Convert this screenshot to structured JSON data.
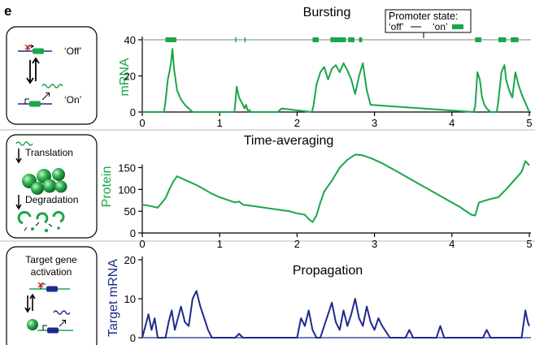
{
  "panel_letter": "e",
  "colors": {
    "green": "#1aa64a",
    "navy": "#1f2a8c",
    "axis": "#000000",
    "track": "#9a9a9a",
    "panel_border": "#000000"
  },
  "legend": {
    "title": "Promoter state:",
    "off_label": "‘off’",
    "on_label": "‘on’"
  },
  "side_panels": [
    {
      "off_label": "‘Off’",
      "on_label": "‘On’"
    },
    {
      "translation_label": "Translation",
      "degradation_label": "Degradation"
    },
    {
      "label_line1": "Target gene",
      "label_line2": "activation"
    }
  ],
  "chart_data": [
    {
      "type": "line",
      "title": "Bursting",
      "xlabel": "",
      "ylabel": "mRNA",
      "xlim": [
        0,
        5
      ],
      "ylim": [
        0,
        40
      ],
      "xticks": [
        0,
        1,
        2,
        3,
        4,
        5
      ],
      "yticks": [
        0,
        20,
        40
      ],
      "promoter_on_intervals": [
        [
          0.3,
          0.44
        ],
        [
          1.2,
          1.21
        ],
        [
          1.32,
          1.33
        ],
        [
          2.2,
          2.28
        ],
        [
          2.43,
          2.63
        ],
        [
          2.66,
          2.74
        ],
        [
          2.8,
          2.84
        ],
        [
          4.3,
          4.38
        ],
        [
          4.6,
          4.7
        ],
        [
          4.76,
          4.86
        ]
      ],
      "series": [
        {
          "x": [
            0,
            0.28,
            0.3,
            0.33,
            0.35,
            0.37,
            0.39,
            0.41,
            0.43,
            0.45,
            0.5,
            0.55,
            0.6,
            0.65,
            1.19,
            1.2,
            1.22,
            1.25,
            1.3,
            1.32,
            1.34,
            1.36,
            1.39,
            1.4,
            1.75,
            1.8,
            2.19,
            2.21,
            2.25,
            2.3,
            2.35,
            2.4,
            2.45,
            2.5,
            2.55,
            2.6,
            2.65,
            2.7,
            2.75,
            2.8,
            2.85,
            2.9,
            2.95,
            4.28,
            4.3,
            4.33,
            4.36,
            4.39,
            4.42,
            4.45,
            4.5,
            4.58,
            4.6,
            4.64,
            4.68,
            4.7,
            4.74,
            4.78,
            4.82,
            4.86,
            4.9,
            4.94,
            4.98,
            5.0
          ],
          "y": [
            0,
            0,
            6,
            18,
            22,
            27,
            35,
            24,
            18,
            12,
            7,
            4,
            2,
            0,
            0,
            4,
            14,
            8,
            4,
            2,
            4,
            1,
            1,
            0,
            0,
            2,
            0,
            3,
            15,
            22,
            25,
            18,
            24,
            26,
            22,
            27,
            23,
            18,
            10,
            20,
            27,
            12,
            4,
            0,
            3,
            22,
            18,
            8,
            4,
            2,
            0,
            0,
            6,
            22,
            26,
            18,
            12,
            8,
            22,
            15,
            10,
            6,
            2,
            0
          ]
        }
      ]
    },
    {
      "type": "line",
      "title": "Time-averaging",
      "xlabel": "",
      "ylabel": "Protein",
      "xlim": [
        0,
        5
      ],
      "ylim": [
        0,
        190
      ],
      "xticks": [
        0,
        1,
        2,
        3,
        4,
        5
      ],
      "yticks": [
        0,
        50,
        100,
        150
      ],
      "series": [
        {
          "x": [
            0,
            0.1,
            0.2,
            0.3,
            0.35,
            0.4,
            0.45,
            0.5,
            0.6,
            0.7,
            0.8,
            0.9,
            1.0,
            1.1,
            1.2,
            1.25,
            1.3,
            1.5,
            1.7,
            1.9,
            2.0,
            2.1,
            2.15,
            2.2,
            2.25,
            2.3,
            2.35,
            2.45,
            2.55,
            2.65,
            2.75,
            2.85,
            2.95,
            3.1,
            3.3,
            3.5,
            3.7,
            3.9,
            4.1,
            4.25,
            4.3,
            4.35,
            4.5,
            4.6,
            4.7,
            4.8,
            4.9,
            4.95,
            5.0
          ],
          "y": [
            65,
            62,
            58,
            80,
            100,
            118,
            130,
            126,
            118,
            110,
            100,
            90,
            82,
            76,
            70,
            72,
            65,
            60,
            55,
            50,
            45,
            42,
            32,
            25,
            40,
            70,
            95,
            120,
            150,
            168,
            180,
            178,
            172,
            160,
            140,
            120,
            100,
            80,
            60,
            42,
            40,
            70,
            78,
            82,
            100,
            120,
            140,
            165,
            155
          ]
        }
      ]
    },
    {
      "type": "line",
      "title": "Propagation",
      "xlabel": "",
      "ylabel": "Target mRNA",
      "xlim": [
        0,
        5
      ],
      "ylim": [
        0,
        20
      ],
      "xticks": [
        0,
        1,
        2,
        3,
        4,
        5
      ],
      "yticks": [
        0,
        10,
        20
      ],
      "series": [
        {
          "x": [
            0,
            0.04,
            0.08,
            0.12,
            0.16,
            0.2,
            0.3,
            0.34,
            0.38,
            0.42,
            0.46,
            0.5,
            0.55,
            0.6,
            0.65,
            0.7,
            0.75,
            0.8,
            0.85,
            0.9,
            0.95,
            1.0,
            1.2,
            1.25,
            1.3,
            1.35,
            1.5,
            2.0,
            2.05,
            2.1,
            2.15,
            2.2,
            2.25,
            2.3,
            2.35,
            2.4,
            2.45,
            2.5,
            2.55,
            2.6,
            2.65,
            2.7,
            2.75,
            2.8,
            2.85,
            2.9,
            2.95,
            3.0,
            3.05,
            3.1,
            3.2,
            3.4,
            3.45,
            3.5,
            3.8,
            3.85,
            3.9,
            4.4,
            4.45,
            4.5,
            4.6,
            4.9,
            4.95,
            4.98,
            5.0
          ],
          "y": [
            0,
            3,
            6,
            2,
            5,
            0,
            0,
            4,
            7,
            2,
            5,
            8,
            4,
            3,
            10,
            12,
            8,
            5,
            2,
            0,
            0,
            0,
            0,
            1,
            0,
            0,
            0,
            0,
            5,
            3,
            7,
            2,
            0,
            0,
            3,
            6,
            9,
            4,
            2,
            7,
            3,
            6,
            10,
            5,
            3,
            8,
            4,
            2,
            5,
            3,
            0,
            0,
            2,
            0,
            0,
            3,
            0,
            0,
            2,
            0,
            0,
            0,
            7,
            4,
            3
          ]
        }
      ]
    }
  ]
}
